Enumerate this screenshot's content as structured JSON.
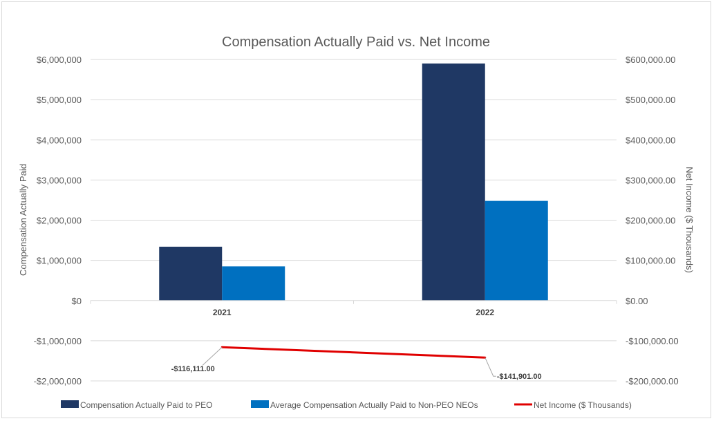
{
  "chart_data": {
    "type": "bar",
    "title": "Compensation Actually Paid vs. Net Income",
    "categories": [
      "2021",
      "2022"
    ],
    "series": [
      {
        "name": "Compensation Actually Paid to PEO",
        "axis": "left",
        "kind": "bar",
        "color": "#1f3864",
        "values": [
          1340000,
          5900000
        ]
      },
      {
        "name": "Average Compensation Actually Paid to Non-PEO NEOs",
        "axis": "left",
        "kind": "bar",
        "color": "#0070c0",
        "values": [
          850000,
          2480000
        ]
      },
      {
        "name": "Net Income ($ Thousands)",
        "axis": "right",
        "kind": "line",
        "color": "#e00000",
        "values": [
          -116111.0,
          -141901.0
        ],
        "labels": [
          "-$116,111.00",
          "-$141,901.00"
        ]
      }
    ],
    "ylabel": "Compensation Actually Paid",
    "y2label": "Net Income ($ Thousands)",
    "ylim": [
      -2000000,
      6000000
    ],
    "y2lim": [
      -200000,
      600000
    ],
    "yticks": [
      6000000,
      5000000,
      4000000,
      3000000,
      2000000,
      1000000,
      0,
      -1000000,
      -2000000
    ],
    "ytick_labels": [
      "$6,000,000",
      "$5,000,000",
      "$4,000,000",
      "$3,000,000",
      "$2,000,000",
      "$1,000,000",
      "$0",
      "-$1,000,000",
      "-$2,000,000"
    ],
    "y2ticks": [
      600000,
      500000,
      400000,
      300000,
      200000,
      100000,
      0,
      -100000,
      -200000
    ],
    "y2tick_labels": [
      "$600,000.00",
      "$500,000.00",
      "$400,000.00",
      "$300,000.00",
      "$200,000.00",
      "$100,000.00",
      "$0.00",
      "-$100,000.00",
      "-$200,000.00"
    ],
    "grid": true,
    "legend": "bottom"
  }
}
